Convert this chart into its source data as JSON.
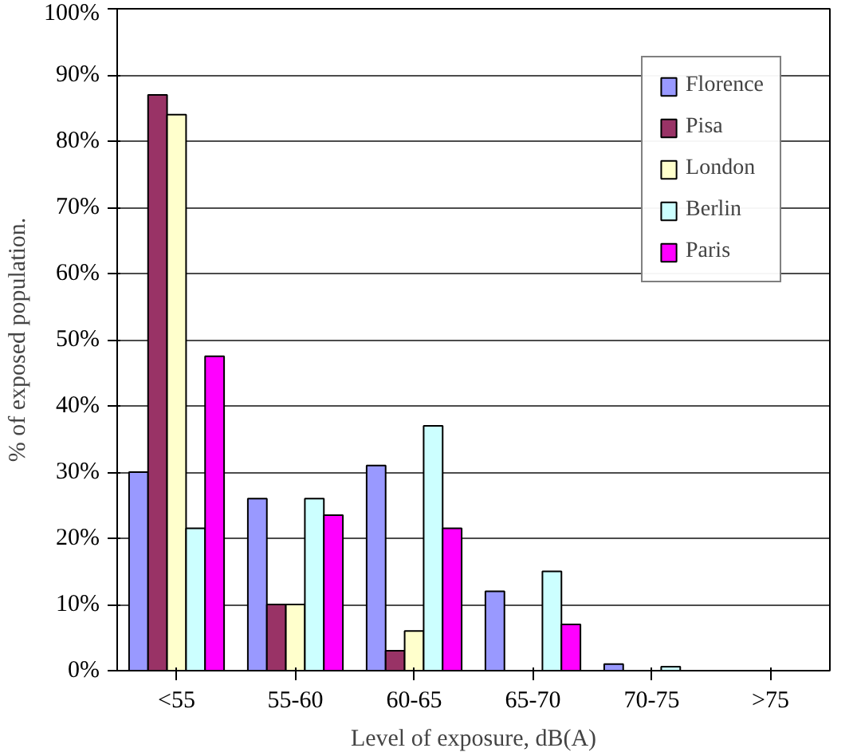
{
  "chart_data": {
    "type": "bar",
    "xlabel": "Level of exposure, dB(A)",
    "ylabel": "% of exposed population.",
    "categories": [
      "<55",
      "55-60",
      "60-65",
      "65-70",
      "70-75",
      ">75"
    ],
    "series": [
      {
        "name": "Florence",
        "color": "#9999ff",
        "values": [
          30,
          26,
          31,
          12,
          1,
          0
        ]
      },
      {
        "name": "Pisa",
        "color": "#993366",
        "values": [
          87,
          10,
          3,
          0,
          0,
          0
        ]
      },
      {
        "name": "London",
        "color": "#ffffcc",
        "values": [
          84,
          10,
          6,
          0,
          0,
          0
        ]
      },
      {
        "name": "Berlin",
        "color": "#ccffff",
        "values": [
          21.5,
          26,
          37,
          15,
          0.6,
          0
        ]
      },
      {
        "name": "Paris",
        "color": "#ff00ff",
        "values": [
          47.5,
          23.5,
          21.5,
          7,
          0,
          0
        ]
      }
    ],
    "ylim": [
      0,
      100
    ],
    "yticks": [
      {
        "value": 0,
        "label": "0%"
      },
      {
        "value": 10,
        "label": "10%"
      },
      {
        "value": 20,
        "label": "20%"
      },
      {
        "value": 30,
        "label": "30%"
      },
      {
        "value": 40,
        "label": "40%"
      },
      {
        "value": 50,
        "label": "50%"
      },
      {
        "value": 60,
        "label": "60%"
      },
      {
        "value": 70,
        "label": "70%"
      },
      {
        "value": 80,
        "label": "80%"
      },
      {
        "value": 90,
        "label": "90%"
      },
      {
        "value": 100,
        "label": "100%"
      }
    ],
    "grid": "y",
    "legend": "top right"
  }
}
